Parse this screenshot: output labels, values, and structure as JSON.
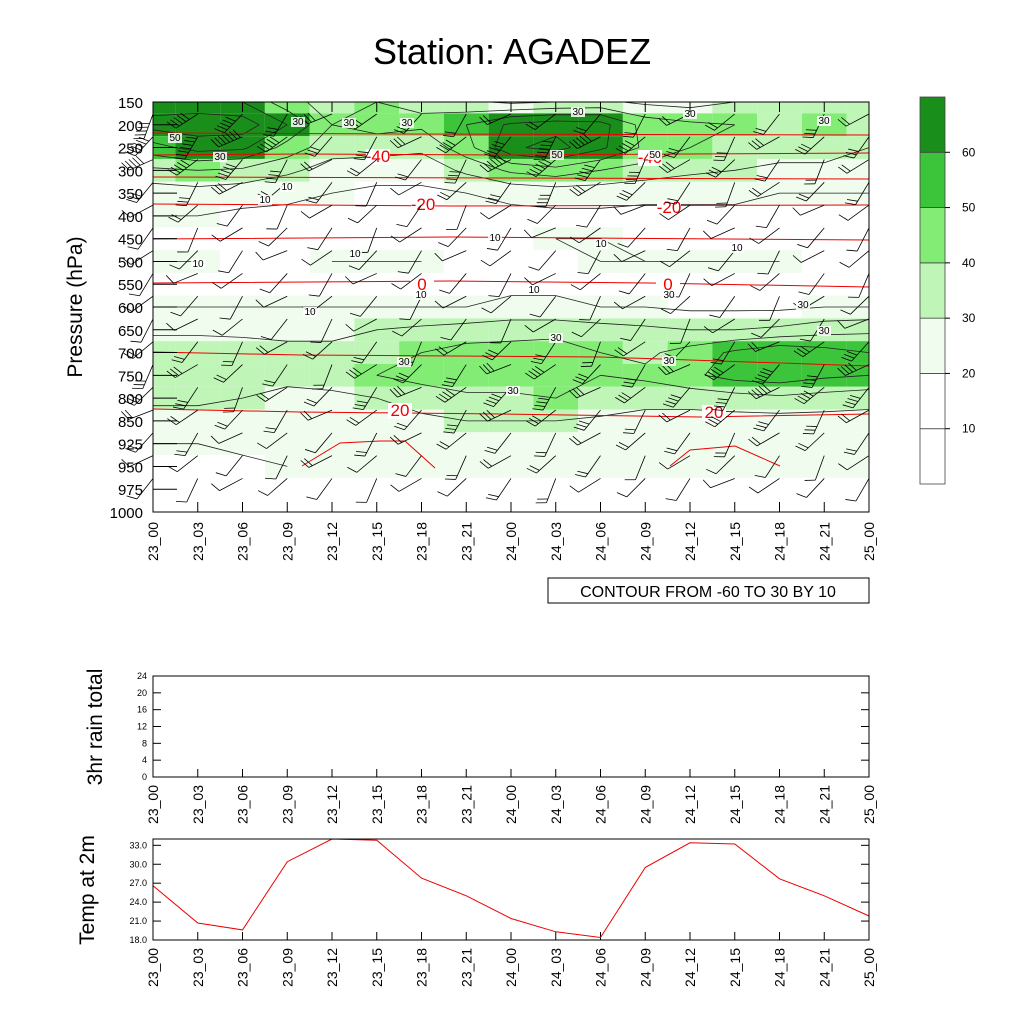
{
  "title": "Station: AGADEZ",
  "info_box": "CONTOUR FROM -60 TO 30 BY 10",
  "colors": {
    "fill_levels": [
      "#ffffff",
      "#f0fced",
      "#bff5b6",
      "#82ec75",
      "#3cc43a",
      "#1a8e1a"
    ],
    "temperature": "#ee0000",
    "wind_contour": "#000000",
    "barb": "#000000"
  },
  "chart_data": [
    {
      "type": "heatmap",
      "title": "Station: AGADEZ",
      "ylabel": "Pressure (hPa)",
      "y_scale": "categorical-reversed",
      "x": [
        "23_00",
        "23_03",
        "23_06",
        "23_09",
        "23_12",
        "23_15",
        "23_18",
        "23_21",
        "24_00",
        "24_03",
        "24_06",
        "24_09",
        "24_12",
        "24_15",
        "24_18",
        "24_21",
        "25_00"
      ],
      "y": [
        150,
        200,
        250,
        300,
        350,
        400,
        450,
        500,
        550,
        600,
        650,
        700,
        750,
        800,
        850,
        925,
        950,
        975,
        1000
      ],
      "wind_speed": [
        [
          54,
          54,
          50,
          34,
          25,
          30,
          28,
          22,
          18,
          20,
          22,
          18,
          16,
          20,
          24,
          28,
          24
        ],
        [
          64,
          66,
          66,
          50,
          30,
          34,
          32,
          40,
          52,
          56,
          54,
          36,
          32,
          30,
          26,
          30,
          26
        ],
        [
          46,
          54,
          52,
          36,
          24,
          24,
          22,
          36,
          58,
          64,
          52,
          38,
          30,
          28,
          24,
          24,
          20
        ],
        [
          28,
          30,
          28,
          22,
          16,
          14,
          14,
          22,
          32,
          36,
          30,
          26,
          22,
          20,
          18,
          18,
          16
        ],
        [
          14,
          16,
          14,
          12,
          10,
          8,
          8,
          10,
          12,
          14,
          14,
          12,
          12,
          12,
          10,
          10,
          10
        ],
        [
          10,
          10,
          8,
          8,
          6,
          6,
          6,
          6,
          8,
          8,
          8,
          8,
          8,
          8,
          8,
          6,
          6
        ],
        [
          8,
          8,
          8,
          6,
          6,
          6,
          6,
          6,
          8,
          10,
          10,
          8,
          6,
          6,
          8,
          8,
          8
        ],
        [
          10,
          10,
          8,
          8,
          10,
          10,
          10,
          8,
          8,
          8,
          10,
          10,
          10,
          10,
          10,
          8,
          8
        ],
        [
          8,
          8,
          8,
          8,
          8,
          8,
          8,
          8,
          8,
          8,
          8,
          8,
          6,
          6,
          6,
          6,
          6
        ],
        [
          10,
          10,
          10,
          10,
          10,
          10,
          10,
          10,
          12,
          12,
          10,
          10,
          8,
          8,
          8,
          10,
          10
        ],
        [
          18,
          18,
          18,
          18,
          18,
          20,
          22,
          24,
          26,
          26,
          24,
          22,
          20,
          20,
          22,
          26,
          28
        ],
        [
          26,
          26,
          24,
          22,
          22,
          26,
          30,
          34,
          34,
          36,
          30,
          28,
          34,
          42,
          48,
          44,
          40
        ],
        [
          26,
          26,
          24,
          22,
          24,
          30,
          34,
          36,
          36,
          36,
          30,
          32,
          38,
          44,
          46,
          42,
          40
        ],
        [
          22,
          22,
          20,
          18,
          18,
          20,
          24,
          28,
          28,
          30,
          28,
          24,
          24,
          26,
          28,
          26,
          24
        ],
        [
          16,
          16,
          14,
          14,
          14,
          16,
          18,
          20,
          20,
          20,
          18,
          16,
          16,
          16,
          16,
          16,
          16
        ],
        [
          10,
          10,
          12,
          14,
          16,
          14,
          14,
          16,
          18,
          18,
          16,
          14,
          12,
          12,
          12,
          12,
          12
        ],
        [
          6,
          6,
          8,
          10,
          12,
          10,
          10,
          14,
          16,
          16,
          14,
          12,
          10,
          10,
          12,
          14,
          12
        ],
        [
          null,
          null,
          null,
          null,
          null,
          null,
          null,
          null,
          null,
          null,
          null,
          null,
          null,
          null,
          null,
          null,
          null
        ],
        [
          null,
          null,
          null,
          null,
          null,
          null,
          null,
          null,
          null,
          null,
          null,
          null,
          null,
          null,
          null,
          null,
          null
        ]
      ],
      "contour_labels": [
        "50",
        "30",
        "50",
        "50",
        "30",
        "30",
        "30",
        "30",
        "30",
        "30",
        "10",
        "10",
        "10",
        "10",
        "10",
        "10",
        "10",
        "10",
        "10",
        "10",
        "30",
        "30",
        "30",
        "30",
        "30",
        "30",
        "30"
      ],
      "temperature_contours": [
        {
          "level": -40,
          "labels": [
            "-40",
            "-40"
          ]
        },
        {
          "level": -20,
          "labels": [
            "-20",
            "-20"
          ]
        },
        {
          "level": 0,
          "labels": [
            "0",
            "0"
          ]
        },
        {
          "level": 20,
          "labels": [
            "20",
            "20"
          ]
        }
      ],
      "colorbar": {
        "levels": [
          10,
          20,
          30,
          40,
          50,
          60
        ],
        "labels": [
          "10",
          "20",
          "30",
          "40",
          "50",
          "60"
        ]
      }
    },
    {
      "type": "line",
      "ylabel": "3hr rain total",
      "x": [
        "23_00",
        "23_03",
        "23_06",
        "23_09",
        "23_12",
        "23_15",
        "23_18",
        "23_21",
        "24_00",
        "24_03",
        "24_06",
        "24_09",
        "24_12",
        "24_15",
        "24_18",
        "24_21",
        "25_00"
      ],
      "yticks": [
        "0",
        "4",
        "8",
        "12",
        "16",
        "20",
        "24"
      ],
      "ylim": [
        0,
        24
      ],
      "series": [
        {
          "values": [
            0,
            0,
            0,
            0,
            0,
            0,
            0,
            0,
            0,
            0,
            0,
            0,
            0,
            0,
            0,
            0,
            0
          ]
        }
      ]
    },
    {
      "type": "line",
      "ylabel": "Temp at 2m",
      "x": [
        "23_00",
        "23_03",
        "23_06",
        "23_09",
        "23_12",
        "23_15",
        "23_18",
        "23_21",
        "24_00",
        "24_03",
        "24_06",
        "24_09",
        "24_12",
        "24_15",
        "24_18",
        "24_21",
        "25_00"
      ],
      "yticks": [
        "18.0",
        "21.0",
        "24.0",
        "27.0",
        "30.0",
        "33.0"
      ],
      "ylim": [
        18,
        34
      ],
      "series": [
        {
          "values": [
            26.6,
            20.7,
            19.6,
            30.4,
            34.0,
            33.8,
            27.8,
            25.0,
            21.4,
            19.3,
            18.4,
            29.5,
            33.4,
            33.2,
            27.7,
            25.0,
            21.8
          ]
        }
      ]
    }
  ]
}
